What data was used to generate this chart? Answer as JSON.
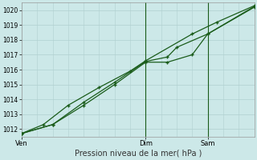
{
  "background_color": "#cce8e8",
  "grid_color": "#b0d0d0",
  "line_color": "#1a5c1a",
  "xlabel": "Pression niveau de la mer( hPa )",
  "ylim": [
    1011.5,
    1020.5
  ],
  "yticks": [
    1012,
    1013,
    1014,
    1015,
    1016,
    1017,
    1018,
    1019,
    1020
  ],
  "xtick_labels": [
    "Ven",
    "",
    "",
    "",
    "Dim",
    "",
    "Sam",
    ""
  ],
  "xtick_positions": [
    0,
    1,
    2,
    3,
    4,
    5,
    6,
    7
  ],
  "xlim": [
    0,
    7.5
  ],
  "vline_positions": [
    4,
    6
  ],
  "series1_x": [
    0,
    1,
    2,
    3,
    4,
    4.7,
    5.5,
    6,
    7.5
  ],
  "series1_y": [
    1011.7,
    1012.3,
    1013.6,
    1015.0,
    1016.5,
    1016.5,
    1017.0,
    1018.4,
    1020.2
  ],
  "series2_x": [
    0,
    1,
    2,
    3,
    4,
    4.7,
    5,
    6,
    7.5
  ],
  "series2_y": [
    1011.7,
    1012.3,
    1013.8,
    1015.15,
    1016.55,
    1016.85,
    1017.5,
    1018.4,
    1020.25
  ],
  "series3_x": [
    0,
    0.7,
    1.5,
    2.5,
    3.5,
    4.0,
    5.5,
    6.3,
    7.5
  ],
  "series3_y": [
    1011.7,
    1012.3,
    1013.6,
    1014.8,
    1015.9,
    1016.6,
    1018.4,
    1019.2,
    1020.3
  ]
}
